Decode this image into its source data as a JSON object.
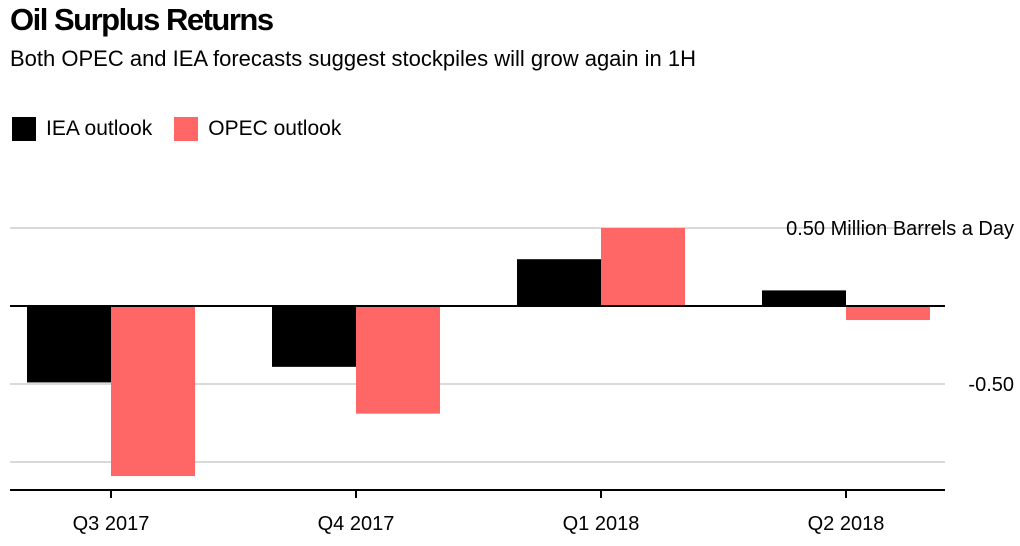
{
  "title": "Oil Surplus Returns",
  "subtitle": "Both OPEC and IEA forecasts suggest stockpiles will grow again in 1H",
  "chart_data": {
    "type": "bar",
    "title": "Oil Surplus Returns",
    "subtitle": "Both OPEC and IEA forecasts suggest stockpiles will grow again in 1H",
    "categories": [
      "Q3 2017",
      "Q4 2017",
      "Q1 2018",
      "Q2 2018"
    ],
    "series": [
      {
        "name": "IEA outlook",
        "color": "#000000",
        "values": [
          -0.49,
          -0.39,
          0.3,
          0.1
        ]
      },
      {
        "name": "OPEC outlook",
        "color": "#ff6666",
        "values": [
          -1.09,
          -0.69,
          0.5,
          -0.09
        ]
      }
    ],
    "y_tick_labels": [
      {
        "value": 0.5,
        "label": "0.50 Million Barrels a Day"
      },
      {
        "value": -0.5,
        "label": "-0.50"
      }
    ],
    "gridlines": [
      0.5,
      0,
      -0.5,
      -1.0
    ],
    "ylim": [
      -1.18,
      0.65
    ],
    "legend_position": "top-left",
    "grid": true
  }
}
